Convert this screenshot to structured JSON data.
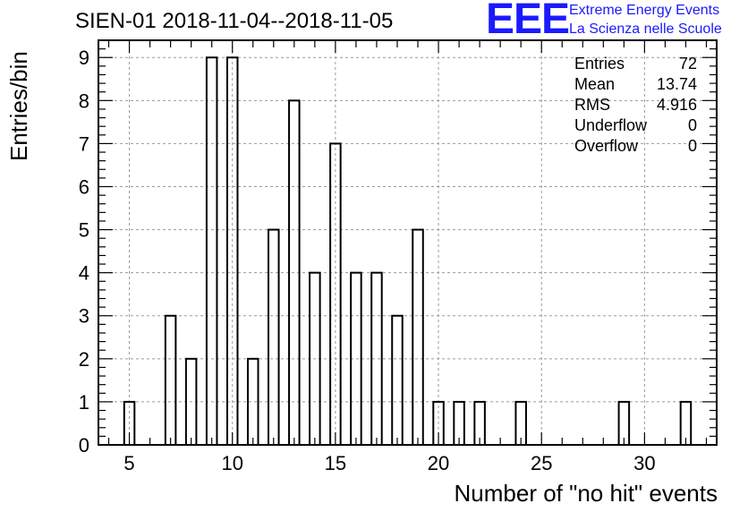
{
  "title": "SIEN-01 2018-11-04--2018-11-05",
  "logo": {
    "mark": "EEE",
    "line1": "Extreme Energy Events",
    "line2": "La Scienza nelle Scuole"
  },
  "colors": {
    "bars": "#000000",
    "grid": "#9a9a9a",
    "logo": "#1a1aff"
  },
  "stats": [
    {
      "label": "Entries",
      "value": "72"
    },
    {
      "label": "Mean",
      "value": "13.74"
    },
    {
      "label": "RMS",
      "value": "4.916"
    },
    {
      "label": "Underflow",
      "value": "0"
    },
    {
      "label": "Overflow",
      "value": "0"
    }
  ],
  "chart_data": {
    "type": "bar",
    "title": "SIEN-01 2018-11-04--2018-11-05",
    "xlabel": "Number of \"no hit\" events",
    "ylabel": "Entries/bin",
    "xlim": [
      3.5,
      33.5
    ],
    "ylim": [
      0,
      9.4
    ],
    "xticks": [
      5,
      10,
      15,
      20,
      25,
      30
    ],
    "yticks": [
      0,
      1,
      2,
      3,
      4,
      5,
      6,
      7,
      8,
      9
    ],
    "grid": true,
    "bin_width": 0.5,
    "x": [
      5,
      7,
      8,
      9,
      10,
      11,
      12,
      13,
      14,
      15,
      16,
      17,
      18,
      19,
      20,
      21,
      22,
      24,
      29,
      32
    ],
    "values": [
      1,
      3,
      2,
      9,
      9,
      2,
      5,
      8,
      4,
      7,
      4,
      4,
      3,
      5,
      1,
      1,
      1,
      1,
      1,
      1
    ]
  }
}
